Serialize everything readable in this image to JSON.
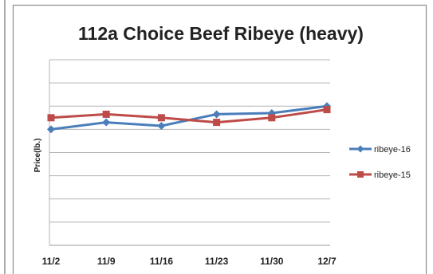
{
  "chart_data": {
    "type": "line",
    "title": "112a Choice Beef Ribeye (heavy)",
    "xlabel": "",
    "ylabel": "Price(lb.)",
    "categories": [
      "11/2",
      "11/9",
      "11/16",
      "11/23",
      "11/30",
      "12/7"
    ],
    "ylim": [
      0,
      8
    ],
    "yticks_shown": false,
    "grid": "horizontal",
    "legend": "right",
    "series": [
      {
        "name": "ribeye-16",
        "color": "#4a7ebb",
        "marker": "diamond",
        "values": [
          5.0,
          5.3,
          5.15,
          5.65,
          5.7,
          6.0
        ]
      },
      {
        "name": "ribeye-15",
        "color": "#be4b48",
        "marker": "square",
        "values": [
          5.5,
          5.65,
          5.5,
          5.3,
          5.5,
          5.85
        ]
      }
    ]
  }
}
